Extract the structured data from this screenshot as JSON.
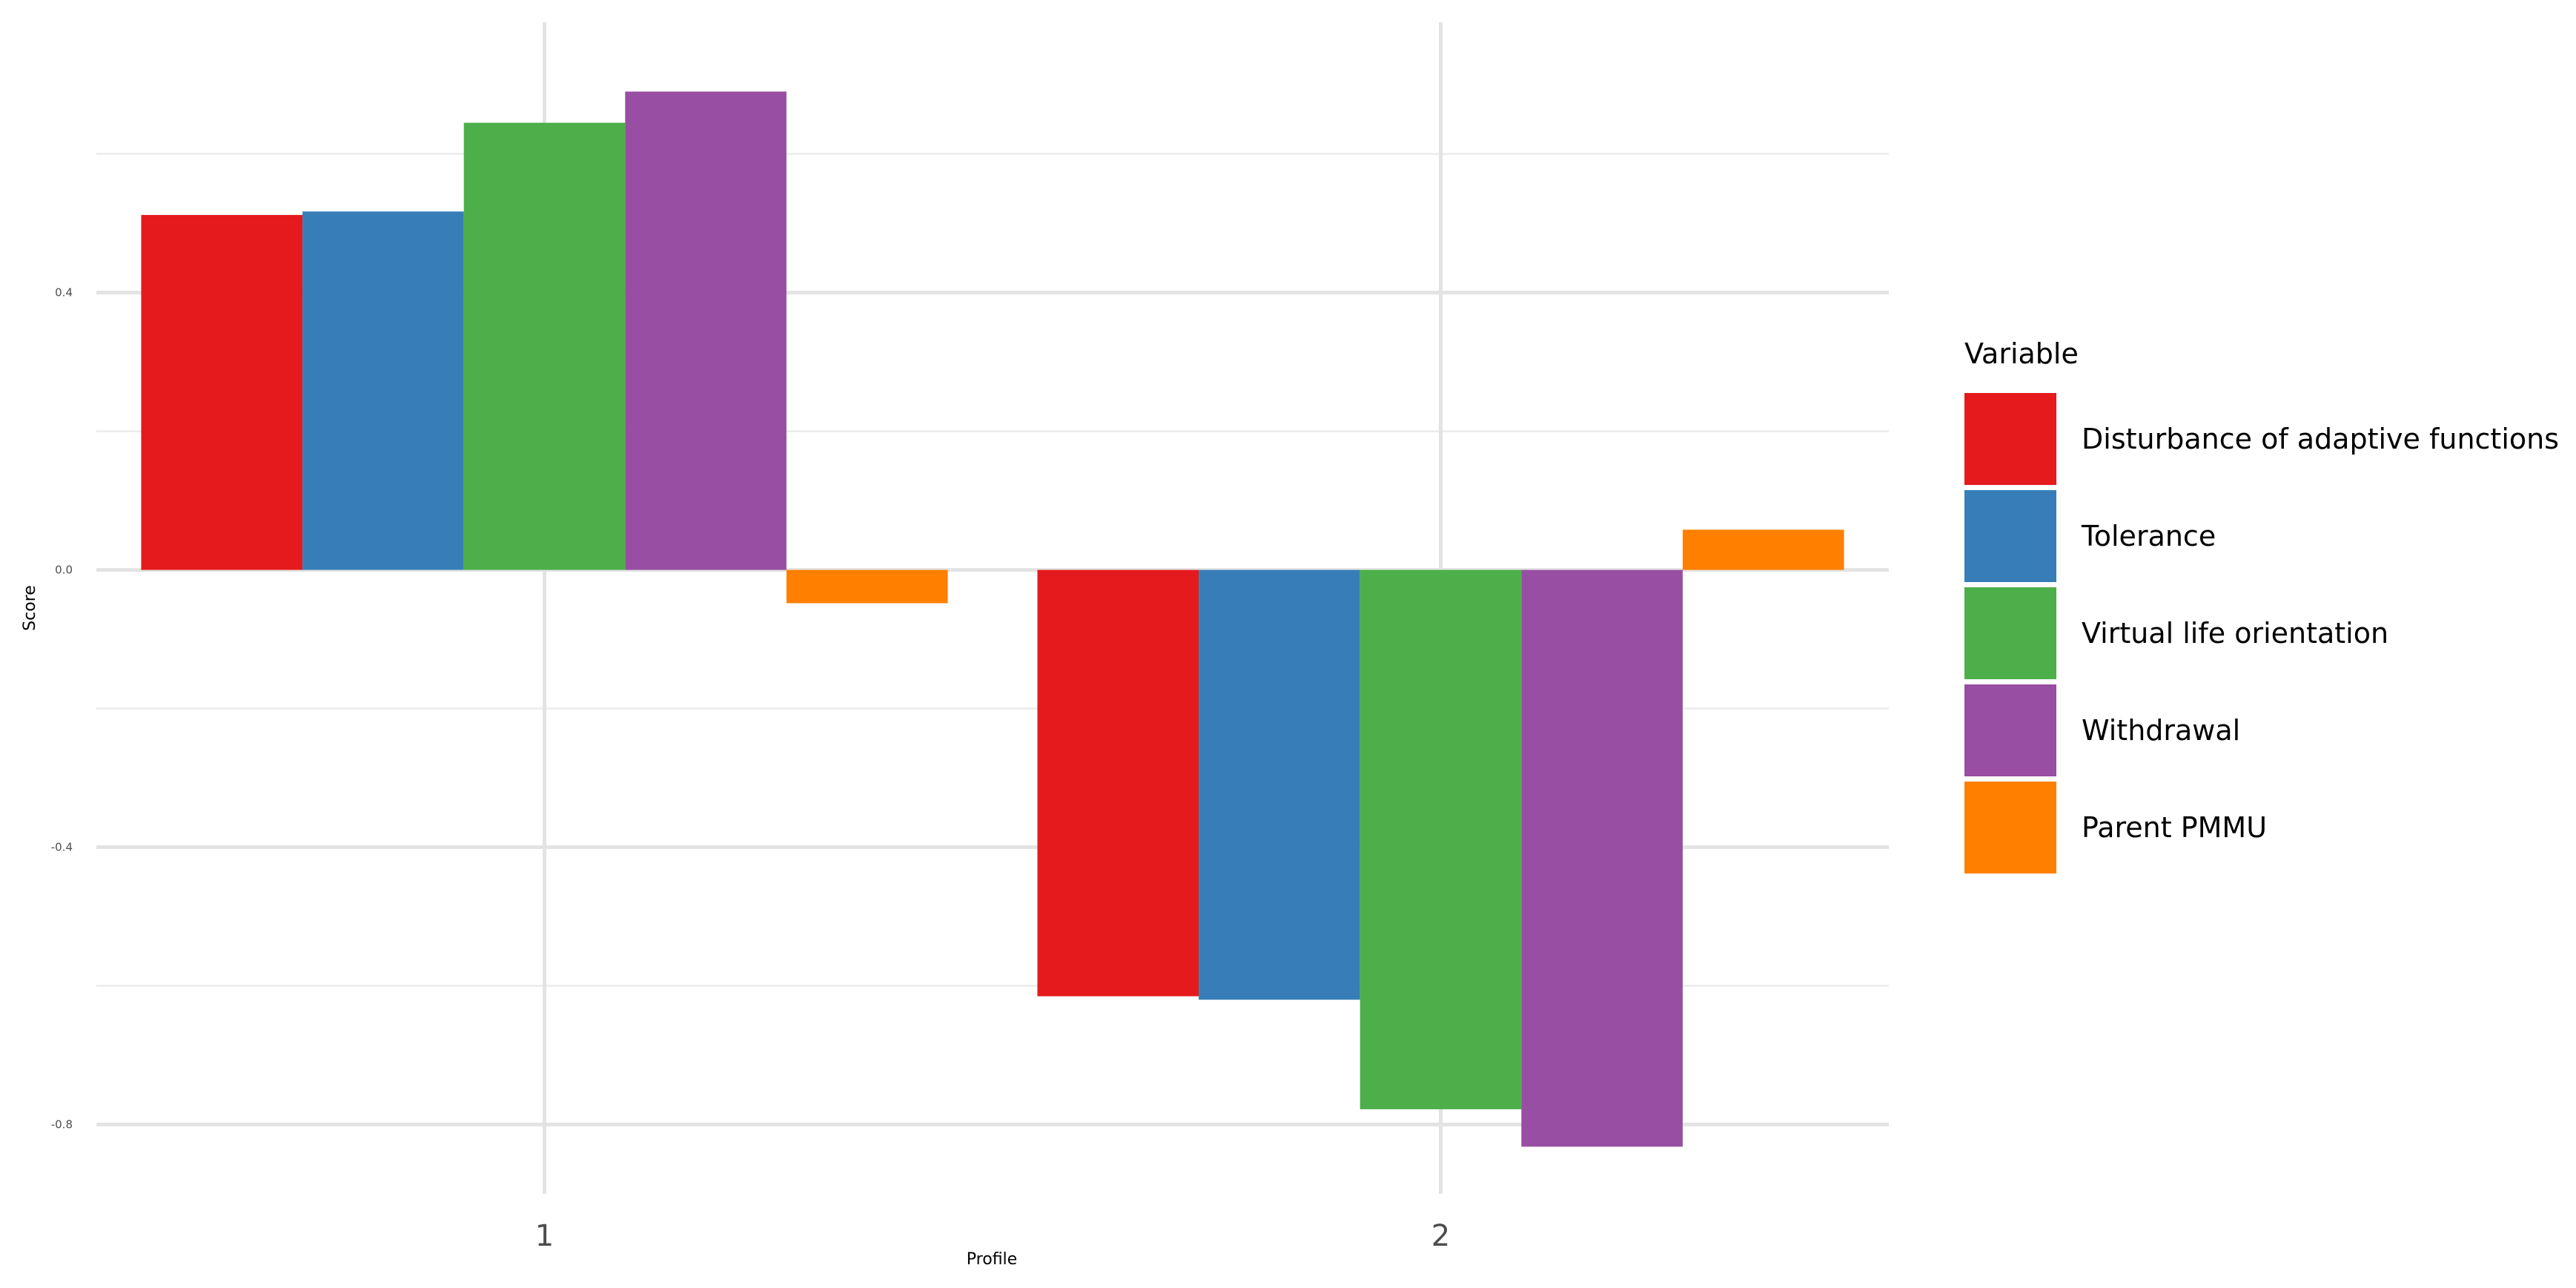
{
  "chart_data": {
    "type": "bar",
    "categories": [
      "1",
      "2"
    ],
    "series": [
      {
        "name": "Disturbance of adaptive functions",
        "color": "#E41A1C",
        "values": [
          0.512,
          -0.615
        ]
      },
      {
        "name": "Tolerance",
        "color": "#377EB8",
        "values": [
          0.517,
          -0.62
        ]
      },
      {
        "name": "Virtual life orientation",
        "color": "#4DAF4A",
        "values": [
          0.645,
          -0.778
        ]
      },
      {
        "name": "Withdrawal",
        "color": "#984EA3",
        "values": [
          0.69,
          -0.832
        ]
      },
      {
        "name": "Parent PMMU",
        "color": "#FF7F00",
        "values": [
          -0.048,
          0.058
        ]
      }
    ],
    "xlabel": "Profile",
    "ylabel": "Score",
    "ylim": [
      -0.9,
      0.79
    ],
    "yticks": [
      {
        "value": 0.4,
        "label": "0.4"
      },
      {
        "value": 0.0,
        "label": "0.0"
      },
      {
        "value": -0.4,
        "label": "-0.4"
      },
      {
        "value": -0.8,
        "label": "-0.8"
      }
    ],
    "minor_yticks": [
      0.6,
      0.2,
      -0.2,
      -0.6
    ],
    "grid": true,
    "legend": {
      "title": "Variable",
      "position": "right"
    }
  }
}
